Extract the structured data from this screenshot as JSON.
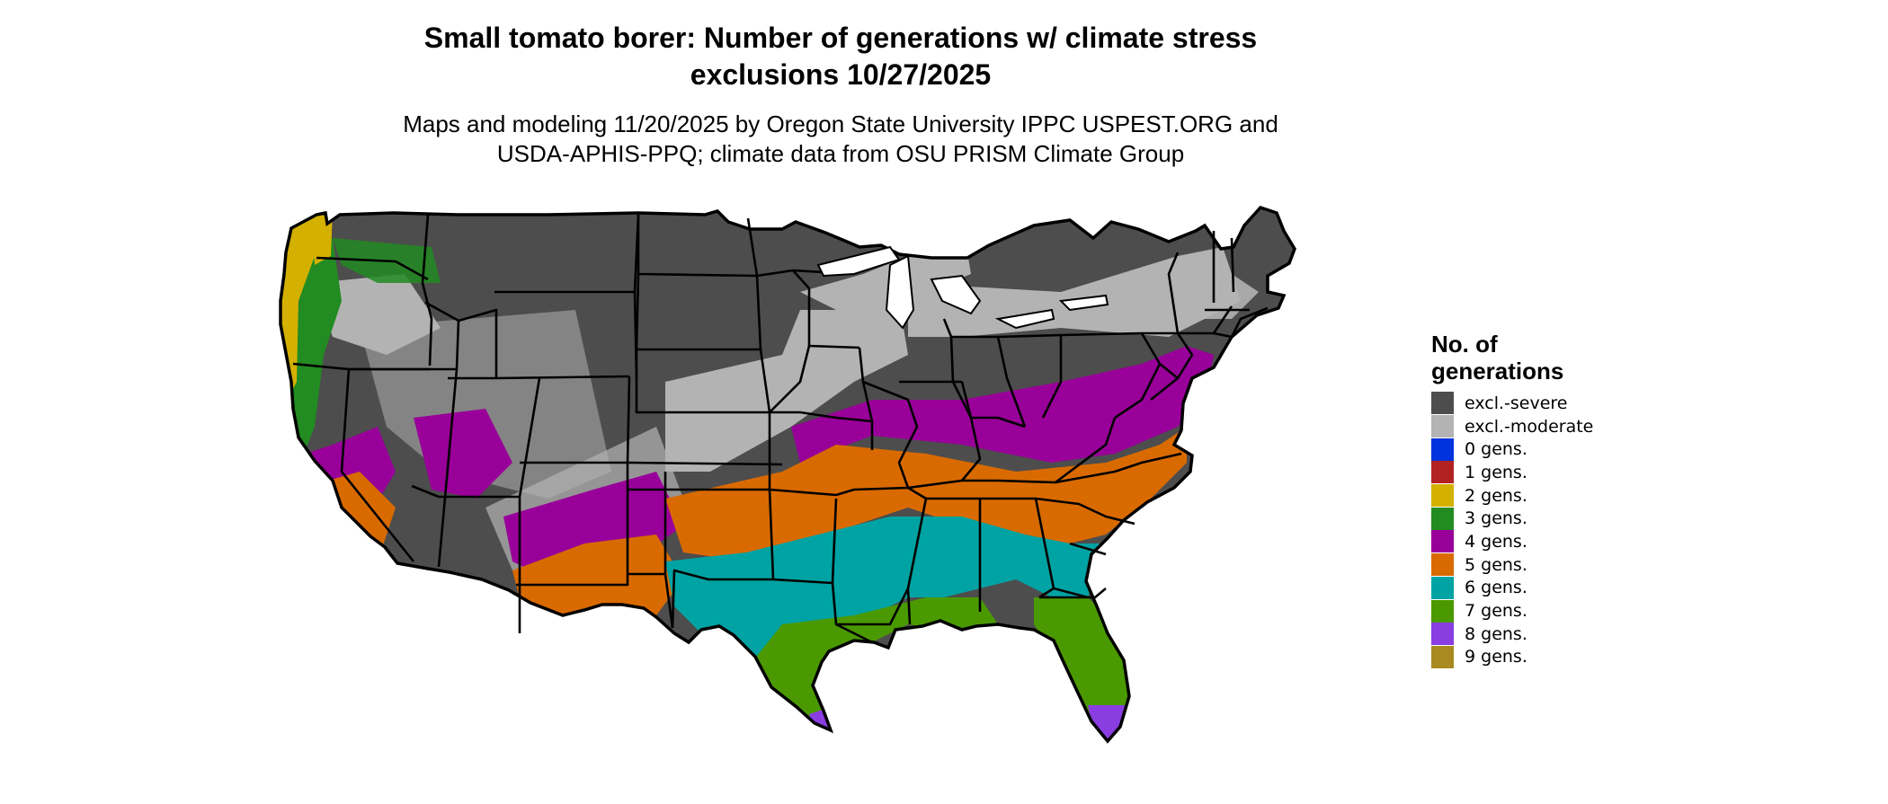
{
  "title_line1": "Small tomato borer: Number of generations w/ climate stress",
  "title_line2": "exclusions 10/27/2025",
  "subtitle_line1": "Maps and modeling 11/20/2025 by Oregon State University IPPC USPEST.ORG and",
  "subtitle_line2": "USDA-APHIS-PPQ; climate data from OSU PRISM Climate Group",
  "legend": {
    "title_line1": "No. of",
    "title_line2": "generations",
    "items": [
      {
        "label": "excl.-severe",
        "color": "#4d4d4d"
      },
      {
        "label": "excl.-moderate",
        "color": "#b3b3b3"
      },
      {
        "label": "0 gens.",
        "color": "#0033dd"
      },
      {
        "label": "1 gens.",
        "color": "#b22222"
      },
      {
        "label": "2 gens.",
        "color": "#d4b000"
      },
      {
        "label": "3 gens.",
        "color": "#228b22"
      },
      {
        "label": "4 gens.",
        "color": "#990099"
      },
      {
        "label": "5 gens.",
        "color": "#d96a00"
      },
      {
        "label": "6 gens.",
        "color": "#00a3a3"
      },
      {
        "label": "7 gens.",
        "color": "#4b9900"
      },
      {
        "label": "8 gens.",
        "color": "#8a3de0"
      },
      {
        "label": "9 gens.",
        "color": "#a88a20"
      }
    ]
  }
}
